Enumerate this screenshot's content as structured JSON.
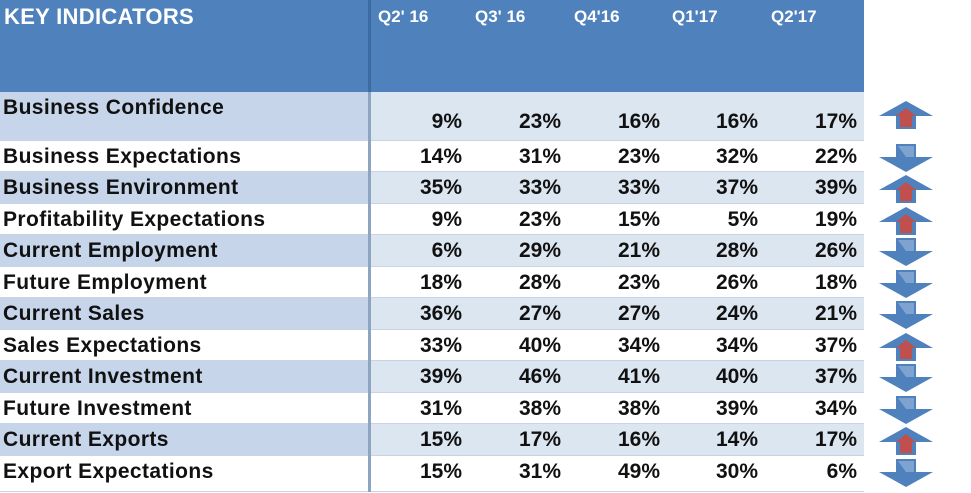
{
  "table": {
    "title": "KEY INDICATORS",
    "columns": [
      "Q2' 16",
      "Q3' 16",
      "Q4'16",
      "Q1'17",
      "Q2'17"
    ],
    "rows": [
      {
        "label": "Business Confidence",
        "values": [
          "9%",
          "23%",
          "16%",
          "16%",
          "17%"
        ],
        "trend": "up"
      },
      {
        "label": "Business Expectations",
        "values": [
          "14%",
          "31%",
          "23%",
          "32%",
          "22%"
        ],
        "trend": "down"
      },
      {
        "label": "Business Environment",
        "values": [
          "35%",
          "33%",
          "33%",
          "37%",
          "39%"
        ],
        "trend": "up"
      },
      {
        "label": "Profitability Expectations",
        "values": [
          "9%",
          "23%",
          "15%",
          "5%",
          "19%"
        ],
        "trend": "up"
      },
      {
        "label": "Current Employment",
        "values": [
          "6%",
          "29%",
          "21%",
          "28%",
          "26%"
        ],
        "trend": "down"
      },
      {
        "label": "Future Employment",
        "values": [
          "18%",
          "28%",
          "23%",
          "26%",
          "18%"
        ],
        "trend": "down"
      },
      {
        "label": "Current Sales",
        "values": [
          "36%",
          "27%",
          "27%",
          "24%",
          "21%"
        ],
        "trend": "down"
      },
      {
        "label": "Sales Expectations",
        "values": [
          "33%",
          "40%",
          "34%",
          "34%",
          "37%"
        ],
        "trend": "up"
      },
      {
        "label": "Current Investment",
        "values": [
          "39%",
          "46%",
          "41%",
          "40%",
          "37%"
        ],
        "trend": "down"
      },
      {
        "label": "Future Investment",
        "values": [
          "31%",
          "38%",
          "38%",
          "39%",
          "34%"
        ],
        "trend": "down"
      },
      {
        "label": "Current Exports",
        "values": [
          "15%",
          "17%",
          "16%",
          "14%",
          "17%"
        ],
        "trend": "up"
      },
      {
        "label": "Export Expectations",
        "values": [
          "15%",
          "31%",
          "49%",
          "30%",
          "6%"
        ],
        "trend": "down"
      }
    ]
  },
  "colors": {
    "header": "#4f81bd",
    "row_band": "#dce6f1",
    "label_band": "#c6d5ea",
    "arrow_up": "#4f81bd",
    "arrow_up_inner": "#c0504d",
    "arrow_down": "#4f81bd"
  },
  "icons": {
    "up": "arrow-up-icon",
    "down": "arrow-down-icon"
  }
}
